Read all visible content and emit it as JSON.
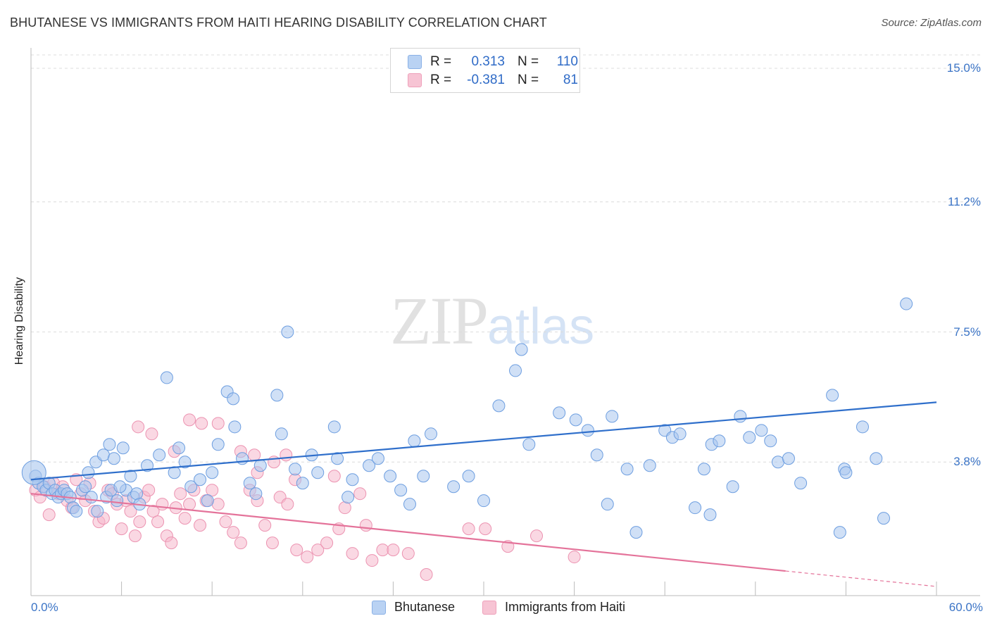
{
  "title": "BHUTANESE VS IMMIGRANTS FROM HAITI HEARING DISABILITY CORRELATION CHART",
  "source": "Source: ZipAtlas.com",
  "watermark": {
    "zip": "ZIP",
    "atlas": "atlas"
  },
  "legend": {
    "rows": [
      {
        "r_label": "R =",
        "r_value": "0.313",
        "n_label": "N =",
        "n_value": "110",
        "color": "#b9d2f3"
      },
      {
        "r_label": "R =",
        "r_value": "-0.381",
        "n_label": "N =",
        "n_value": "81",
        "color": "#f7c4d4"
      }
    ]
  },
  "bottom_legend": {
    "series1": "Bhutanese",
    "series2": "Immigrants from Haiti"
  },
  "chart_data": {
    "type": "scatter",
    "title": "BHUTANESE VS IMMIGRANTS FROM HAITI HEARING DISABILITY CORRELATION CHART",
    "xlabel": "",
    "ylabel": "Hearing Disability",
    "xlim": [
      0,
      60
    ],
    "ylim": [
      0,
      15.0
    ],
    "x_tick_labels": [
      "0.0%",
      "60.0%"
    ],
    "y_ticks": [
      3.8,
      7.5,
      11.2,
      15.0
    ],
    "y_tick_labels": [
      "3.8%",
      "7.5%",
      "11.2%",
      "15.0%"
    ],
    "grid": true,
    "legend_position": "top-center",
    "colors": {
      "blue_fill": "#a9c7ef",
      "blue_stroke": "#6d9ee0",
      "blue_line": "#2f6fcb",
      "pink_fill": "#f5b8cc",
      "pink_stroke": "#ec93b1",
      "pink_line": "#e4739a"
    },
    "series": [
      {
        "name": "Bhutanese",
        "trend": {
          "x": [
            0,
            60
          ],
          "y": [
            3.3,
            5.5
          ]
        },
        "points": [
          [
            0.3,
            3.4
          ],
          [
            0.5,
            3.2
          ],
          [
            0.8,
            3.1
          ],
          [
            1.0,
            3.0
          ],
          [
            1.2,
            3.2
          ],
          [
            1.4,
            2.9
          ],
          [
            1.6,
            3.0
          ],
          [
            1.8,
            2.8
          ],
          [
            2.0,
            2.9
          ],
          [
            2.2,
            3.0
          ],
          [
            2.4,
            2.9
          ],
          [
            2.6,
            2.8
          ],
          [
            2.8,
            2.5
          ],
          [
            3.0,
            2.4
          ],
          [
            3.4,
            3.0
          ],
          [
            3.6,
            3.1
          ],
          [
            4.0,
            2.8
          ],
          [
            4.4,
            2.4
          ],
          [
            5.0,
            2.8
          ],
          [
            5.3,
            3.0
          ],
          [
            5.7,
            2.7
          ],
          [
            6.3,
            3.0
          ],
          [
            6.8,
            2.8
          ],
          [
            7.0,
            2.9
          ],
          [
            3.8,
            3.5
          ],
          [
            4.3,
            3.8
          ],
          [
            4.8,
            4.0
          ],
          [
            5.2,
            4.3
          ],
          [
            5.5,
            3.9
          ],
          [
            5.9,
            3.1
          ],
          [
            6.1,
            4.2
          ],
          [
            6.6,
            3.4
          ],
          [
            7.2,
            2.6
          ],
          [
            7.7,
            3.7
          ],
          [
            8.5,
            4.0
          ],
          [
            9.0,
            6.2
          ],
          [
            9.5,
            3.5
          ],
          [
            9.8,
            4.2
          ],
          [
            10.2,
            3.8
          ],
          [
            10.6,
            3.1
          ],
          [
            11.2,
            3.3
          ],
          [
            11.7,
            2.7
          ],
          [
            12.0,
            3.5
          ],
          [
            12.4,
            4.3
          ],
          [
            13.0,
            5.8
          ],
          [
            13.4,
            5.6
          ],
          [
            13.5,
            4.8
          ],
          [
            14.0,
            3.9
          ],
          [
            14.5,
            3.2
          ],
          [
            14.9,
            2.9
          ],
          [
            15.2,
            3.7
          ],
          [
            16.3,
            5.7
          ],
          [
            16.6,
            4.6
          ],
          [
            17.0,
            7.5
          ],
          [
            17.5,
            3.6
          ],
          [
            18.0,
            3.2
          ],
          [
            18.6,
            4.0
          ],
          [
            19.0,
            3.5
          ],
          [
            20.1,
            4.8
          ],
          [
            20.3,
            3.9
          ],
          [
            21.0,
            2.8
          ],
          [
            21.3,
            3.3
          ],
          [
            22.4,
            3.7
          ],
          [
            23.0,
            3.9
          ],
          [
            23.8,
            3.4
          ],
          [
            24.5,
            3.0
          ],
          [
            25.1,
            2.6
          ],
          [
            25.4,
            4.4
          ],
          [
            26.0,
            3.4
          ],
          [
            28.0,
            3.1
          ],
          [
            26.5,
            4.6
          ],
          [
            29.0,
            3.4
          ],
          [
            30.0,
            2.7
          ],
          [
            31.0,
            5.4
          ],
          [
            32.1,
            6.4
          ],
          [
            32.5,
            7.0
          ],
          [
            33.0,
            4.3
          ],
          [
            35.0,
            5.2
          ],
          [
            36.1,
            5.0
          ],
          [
            36.9,
            4.7
          ],
          [
            37.5,
            4.0
          ],
          [
            38.5,
            5.1
          ],
          [
            39.5,
            3.6
          ],
          [
            40.1,
            1.8
          ],
          [
            41.0,
            3.7
          ],
          [
            42.0,
            4.7
          ],
          [
            42.5,
            4.5
          ],
          [
            43.0,
            4.6
          ],
          [
            44.0,
            2.5
          ],
          [
            44.6,
            3.6
          ],
          [
            45.1,
            4.3
          ],
          [
            45.6,
            4.4
          ],
          [
            46.5,
            3.1
          ],
          [
            47.0,
            5.1
          ],
          [
            47.6,
            4.5
          ],
          [
            48.4,
            4.7
          ],
          [
            49.0,
            4.4
          ],
          [
            49.5,
            3.8
          ],
          [
            50.2,
            3.9
          ],
          [
            51.0,
            3.2
          ],
          [
            53.1,
            5.7
          ],
          [
            53.9,
            3.6
          ],
          [
            56.5,
            2.2
          ],
          [
            58.0,
            8.3
          ],
          [
            53.6,
            1.8
          ],
          [
            54.0,
            3.5
          ],
          [
            55.1,
            4.8
          ],
          [
            56.0,
            3.9
          ],
          [
            45.0,
            2.3
          ],
          [
            38.2,
            2.6
          ]
        ]
      },
      {
        "name": "Immigrants from Haiti",
        "trend": {
          "x": [
            0,
            50
          ],
          "y": [
            2.9,
            0.7
          ]
        },
        "trend_dashed": {
          "x": [
            50,
            60
          ],
          "y": [
            0.7,
            0.26
          ]
        },
        "points": [
          [
            0.3,
            3.0
          ],
          [
            0.6,
            2.8
          ],
          [
            0.9,
            3.1
          ],
          [
            1.2,
            2.3
          ],
          [
            1.5,
            3.2
          ],
          [
            1.8,
            2.9
          ],
          [
            2.1,
            3.1
          ],
          [
            2.4,
            2.7
          ],
          [
            2.7,
            2.5
          ],
          [
            3.0,
            3.3
          ],
          [
            3.3,
            2.9
          ],
          [
            3.6,
            2.7
          ],
          [
            3.9,
            3.2
          ],
          [
            4.2,
            2.4
          ],
          [
            4.5,
            2.1
          ],
          [
            4.8,
            2.2
          ],
          [
            5.1,
            3.0
          ],
          [
            5.4,
            2.9
          ],
          [
            5.7,
            2.6
          ],
          [
            6.0,
            1.9
          ],
          [
            6.3,
            2.7
          ],
          [
            6.6,
            2.4
          ],
          [
            6.9,
            1.7
          ],
          [
            7.2,
            2.1
          ],
          [
            7.5,
            2.8
          ],
          [
            7.8,
            3.0
          ],
          [
            8.1,
            2.4
          ],
          [
            8.4,
            2.1
          ],
          [
            8.7,
            2.6
          ],
          [
            9.0,
            1.7
          ],
          [
            9.3,
            1.5
          ],
          [
            9.6,
            2.5
          ],
          [
            9.9,
            2.9
          ],
          [
            10.2,
            2.2
          ],
          [
            10.5,
            2.6
          ],
          [
            10.8,
            3.0
          ],
          [
            11.2,
            2.0
          ],
          [
            11.6,
            2.7
          ],
          [
            12.0,
            3.0
          ],
          [
            12.4,
            2.6
          ],
          [
            12.9,
            2.1
          ],
          [
            13.4,
            1.8
          ],
          [
            13.9,
            1.5
          ],
          [
            14.5,
            3.0
          ],
          [
            15.0,
            2.7
          ],
          [
            15.5,
            2.0
          ],
          [
            16.0,
            1.5
          ],
          [
            16.5,
            2.8
          ],
          [
            17.0,
            2.6
          ],
          [
            17.6,
            1.3
          ],
          [
            18.3,
            1.1
          ],
          [
            19.0,
            1.3
          ],
          [
            19.6,
            1.5
          ],
          [
            20.1,
            3.4
          ],
          [
            20.4,
            1.9
          ],
          [
            20.8,
            2.5
          ],
          [
            21.3,
            1.2
          ],
          [
            21.8,
            2.9
          ],
          [
            22.2,
            2.0
          ],
          [
            22.6,
            1.0
          ],
          [
            23.3,
            1.3
          ],
          [
            24.0,
            1.3
          ],
          [
            25.0,
            1.2
          ],
          [
            26.2,
            0.6
          ],
          [
            7.1,
            4.8
          ],
          [
            8.0,
            4.6
          ],
          [
            9.5,
            4.1
          ],
          [
            10.5,
            5.0
          ],
          [
            11.3,
            4.9
          ],
          [
            12.4,
            4.9
          ],
          [
            13.9,
            4.1
          ],
          [
            14.8,
            4.0
          ],
          [
            15.0,
            3.5
          ],
          [
            16.1,
            3.8
          ],
          [
            16.9,
            4.0
          ],
          [
            17.5,
            3.3
          ],
          [
            29.0,
            1.9
          ],
          [
            30.1,
            1.9
          ],
          [
            31.6,
            1.4
          ],
          [
            33.5,
            1.7
          ],
          [
            36.0,
            1.1
          ]
        ]
      }
    ]
  }
}
